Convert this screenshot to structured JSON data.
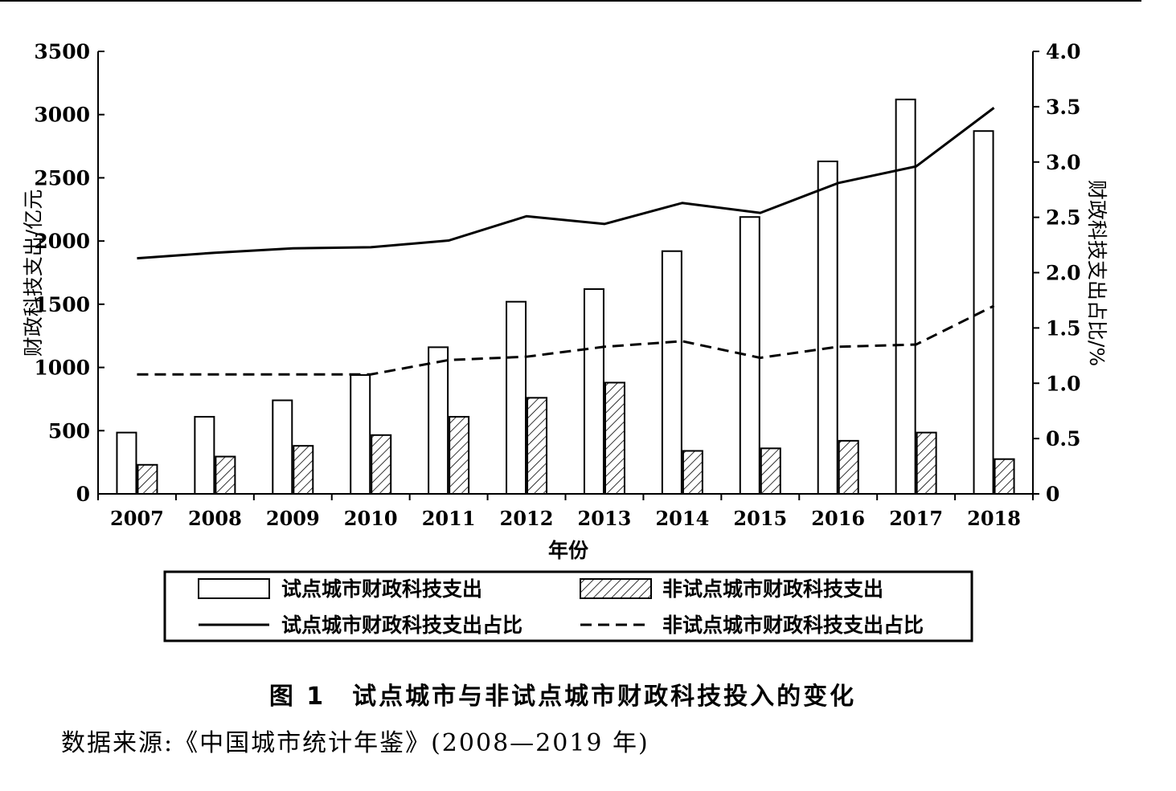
{
  "chart_data": {
    "type": "bar",
    "categories": [
      "2007",
      "2008",
      "2009",
      "2010",
      "2011",
      "2012",
      "2013",
      "2014",
      "2015",
      "2016",
      "2017",
      "2018"
    ],
    "series": [
      {
        "name": "试点城市财政科技支出",
        "kind": "bar",
        "axis": "left",
        "style": "open",
        "values": [
          485,
          610,
          740,
          940,
          1160,
          1520,
          1620,
          1920,
          2190,
          2630,
          3120,
          2870
        ]
      },
      {
        "name": "非试点城市财政科技支出",
        "kind": "bar",
        "axis": "left",
        "style": "hatched",
        "values": [
          230,
          295,
          380,
          465,
          610,
          760,
          880,
          340,
          360,
          420,
          485,
          275
        ]
      },
      {
        "name": "试点城市财政科技支出占比",
        "kind": "line",
        "axis": "right",
        "style": "solid",
        "values": [
          2.13,
          2.18,
          2.22,
          2.23,
          2.29,
          2.51,
          2.44,
          2.63,
          2.54,
          2.81,
          2.96,
          3.49
        ]
      },
      {
        "name": "非试点城市财政科技支出占比",
        "kind": "line",
        "axis": "right",
        "style": "dashed",
        "values": [
          1.08,
          1.08,
          1.08,
          1.08,
          1.21,
          1.24,
          1.33,
          1.38,
          1.23,
          1.33,
          1.35,
          1.7
        ]
      }
    ],
    "xlabel": "年份",
    "ylabel": "财政科技支出/亿元",
    "y2label": "财政科技支出占比/%",
    "ylim": [
      0,
      3500
    ],
    "y2lim": [
      0,
      4.0
    ],
    "yticks": [
      "0",
      "500",
      "1000",
      "1500",
      "2000",
      "2500",
      "3000",
      "3500"
    ],
    "y2ticks": [
      "0",
      "0.5",
      "1.0",
      "1.5",
      "2.0",
      "2.5",
      "3.0",
      "3.5",
      "4.0"
    ],
    "legend": "bottom",
    "grid": false
  },
  "caption": "图 1　试点城市与非试点城市财政科技投入的变化",
  "source": "数据来源:《中国城市统计年鉴》(2008—2019 年)"
}
